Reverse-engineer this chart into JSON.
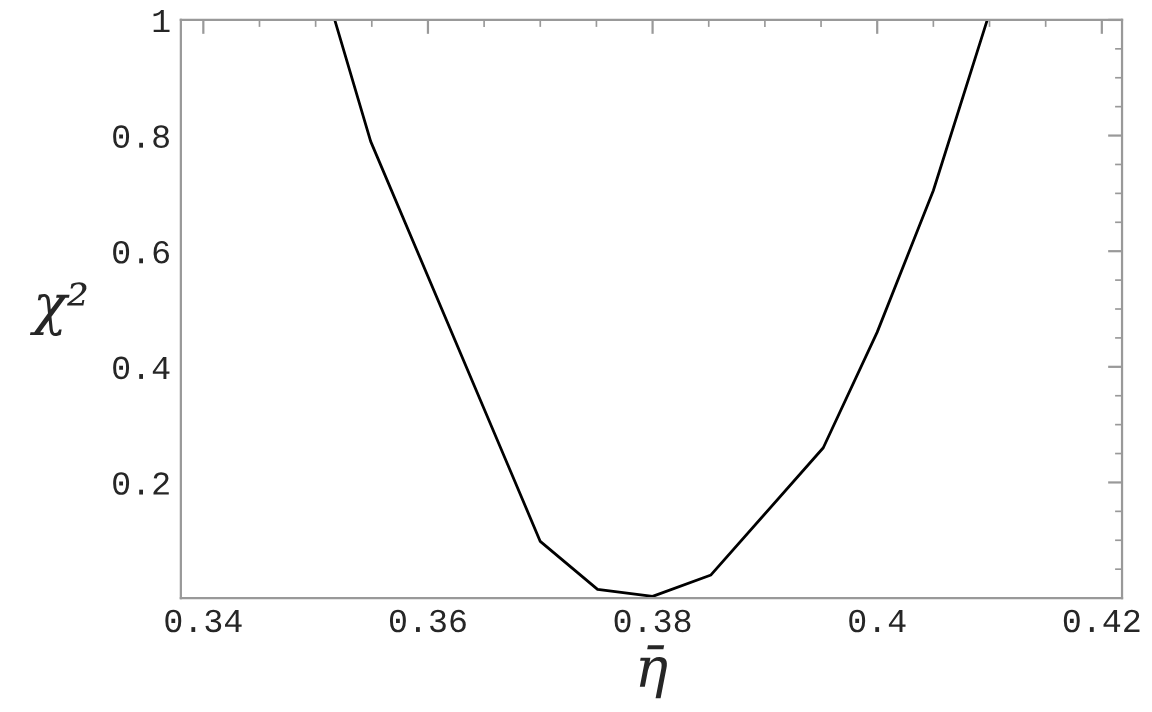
{
  "chart_data": {
    "type": "line",
    "xlabel": "η̄",
    "ylabel": "χ²",
    "x": [
      0.3517,
      0.3549,
      0.37,
      0.3751,
      0.38,
      0.3852,
      0.3952,
      0.4,
      0.405,
      0.4098
    ],
    "series": [
      {
        "color": "#000000",
        "values": [
          1.0,
          0.79,
          0.098,
          0.015,
          0.003,
          0.04,
          0.26,
          0.46,
          0.705,
          1.0
        ]
      }
    ],
    "xlim": [
      0.338,
      0.4218
    ],
    "ylim": [
      0,
      1
    ],
    "xticks": [
      0.34,
      0.36,
      0.38,
      {
        "value": 0.4,
        "label": "0.4"
      },
      0.42
    ],
    "yticks": [
      0.2,
      0.4,
      0.6,
      0.8,
      {
        "value": 1,
        "label": "1"
      }
    ],
    "grid": false,
    "marker": "none",
    "line_style": "solid"
  }
}
